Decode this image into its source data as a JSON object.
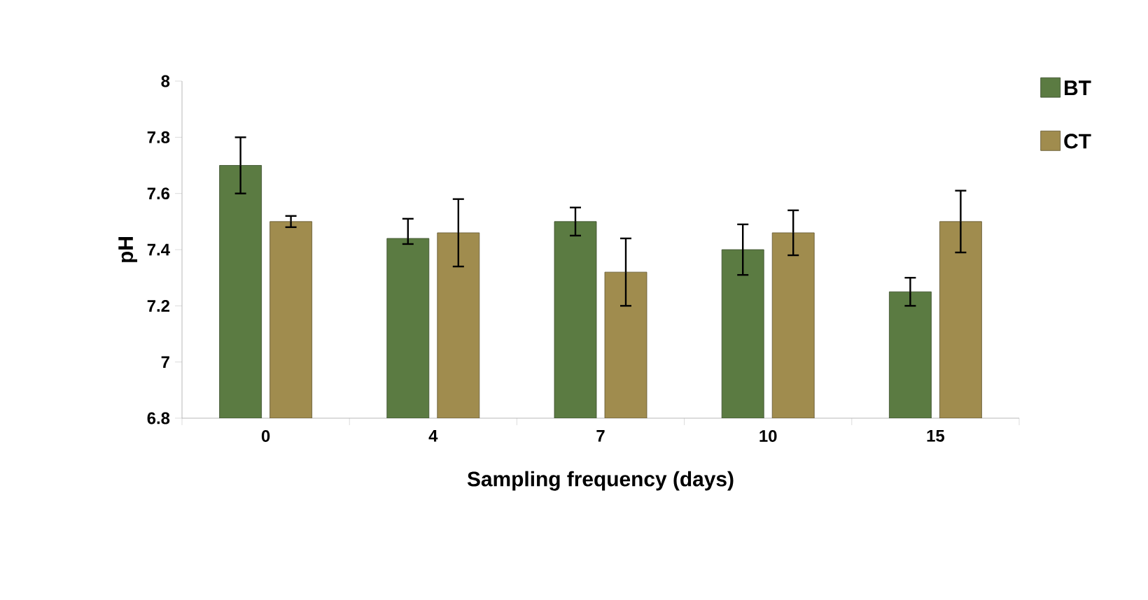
{
  "chart_data": {
    "type": "bar",
    "xlabel": "Sampling frequency (days)",
    "ylabel": "pH",
    "categories": [
      "0",
      "4",
      "7",
      "10",
      "15"
    ],
    "series": [
      {
        "name": "BT",
        "color": "#5b7b42",
        "values": [
          7.7,
          7.44,
          7.5,
          7.4,
          7.25
        ],
        "errors": [
          0.1,
          [
            7.42,
            7.51
          ],
          0.05,
          0.09,
          0.05
        ]
      },
      {
        "name": "CT",
        "color": "#a08c4e",
        "values": [
          7.5,
          7.46,
          7.32,
          7.46,
          7.5
        ],
        "errors": [
          0.02,
          0.12,
          0.12,
          0.08,
          0.11
        ]
      }
    ],
    "ylim": [
      6.8,
      8
    ],
    "yticks": [
      6.8,
      7,
      7.2,
      7.4,
      7.6,
      7.8,
      8
    ],
    "grid": false,
    "legend": "top right"
  }
}
